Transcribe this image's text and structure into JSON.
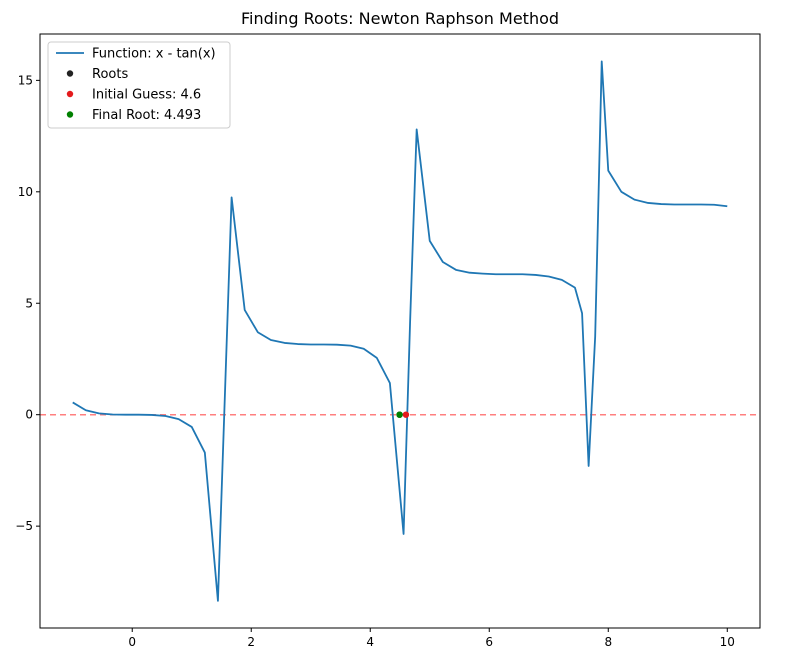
{
  "chart_data": {
    "type": "line",
    "title": "Finding Roots: Newton Raphson Method",
    "xlabel": "",
    "ylabel": "",
    "xlim": [
      -1.55,
      10.55
    ],
    "ylim": [
      -9.57,
      17.08
    ],
    "grid": false,
    "legend_position": "top-left",
    "x_ticks": [
      0,
      2,
      4,
      6,
      8,
      10
    ],
    "y_ticks": [
      -5,
      0,
      5,
      10,
      15
    ],
    "x_tick_labels": [
      "0",
      "2",
      "4",
      "6",
      "8",
      "10"
    ],
    "y_tick_labels": [
      "−5",
      "0",
      "5",
      "10",
      "15"
    ],
    "series": [
      {
        "name": "Function: x - tan(x)",
        "kind": "line",
        "color": "#1f77b4",
        "x": [
          -1.0,
          -0.78,
          -0.56,
          -0.33,
          -0.11,
          0.11,
          0.33,
          0.56,
          0.78,
          1.0,
          1.22,
          1.44,
          1.67,
          1.89,
          2.11,
          2.33,
          2.56,
          2.78,
          3.0,
          3.22,
          3.44,
          3.67,
          3.89,
          4.11,
          4.33,
          4.56,
          4.67,
          4.78,
          5.0,
          5.22,
          5.44,
          5.67,
          5.89,
          6.11,
          6.33,
          6.56,
          6.78,
          7.0,
          7.22,
          7.44,
          7.56,
          7.67,
          7.78,
          7.89,
          8.0,
          8.22,
          8.44,
          8.67,
          8.89,
          9.11,
          9.33,
          9.56,
          9.78,
          10.0
        ],
        "y": [
          0.55,
          0.2,
          0.06,
          0.01,
          0.0,
          0.0,
          -0.01,
          -0.06,
          -0.2,
          -0.55,
          -1.7,
          -8.35,
          9.75,
          4.7,
          3.7,
          3.35,
          3.22,
          3.17,
          3.15,
          3.15,
          3.14,
          3.1,
          2.96,
          2.55,
          1.42,
          -5.35,
          4.2,
          12.8,
          7.8,
          6.85,
          6.5,
          6.37,
          6.33,
          6.3,
          6.3,
          6.3,
          6.27,
          6.2,
          6.05,
          5.7,
          4.55,
          -2.3,
          3.5,
          15.85,
          10.95,
          10.0,
          9.65,
          9.5,
          9.45,
          9.43,
          9.43,
          9.43,
          9.42,
          9.35
        ]
      },
      {
        "name": "Roots",
        "kind": "scatter",
        "color": "#222222",
        "x": [
          4.493
        ],
        "y": [
          0.0
        ]
      },
      {
        "name": "Initial Guess: 4.6",
        "kind": "scatter",
        "color": "#e41a1c",
        "x": [
          4.6
        ],
        "y": [
          0.0
        ]
      },
      {
        "name": "Final Root: 4.493",
        "kind": "scatter",
        "color": "#008000",
        "x": [
          4.493
        ],
        "y": [
          0.0
        ]
      }
    ],
    "reference_lines": [
      {
        "orientation": "horizontal",
        "y": 0,
        "color": "#ff0000",
        "style": "dashed",
        "alpha": 0.5
      }
    ]
  }
}
